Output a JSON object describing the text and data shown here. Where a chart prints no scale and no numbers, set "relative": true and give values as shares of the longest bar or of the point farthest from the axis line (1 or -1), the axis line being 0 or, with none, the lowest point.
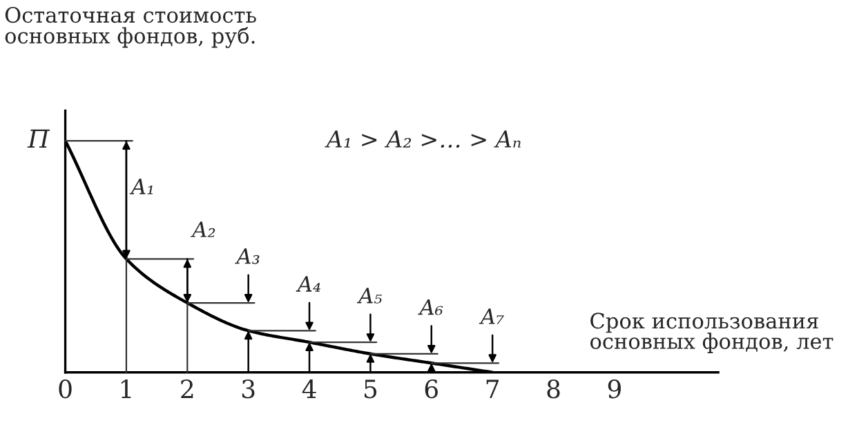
{
  "chart_data": {
    "type": "line",
    "relative": true,
    "xlabel": "Срок использования\nосновных фондов, лет",
    "ylabel": "Остаточная стоимость\nосновных фондов, руб.",
    "x": [
      0,
      1,
      2,
      3,
      4,
      5,
      6,
      7
    ],
    "series": [
      {
        "color": "#000000",
        "values": [
          1,
          0.49,
          0.3,
          0.18,
          0.13,
          0.08,
          0.04,
          0
        ]
      }
    ],
    "xlim": [
      0,
      10.7
    ],
    "xticks": [
      0,
      1,
      2,
      3,
      4,
      5,
      6,
      7,
      8,
      9
    ],
    "tick_labels": "x",
    "grid": false,
    "legend": false,
    "marker": "none",
    "line_style": "solid",
    "annotations": [
      {
        "text": "П",
        "x": 0,
        "y": 1
      },
      "A₁ > A₂ >… > Aₙ",
      "A₁",
      "A₂",
      "A₃",
      "A₄",
      "A₅",
      "A₆",
      "A₇"
    ]
  }
}
